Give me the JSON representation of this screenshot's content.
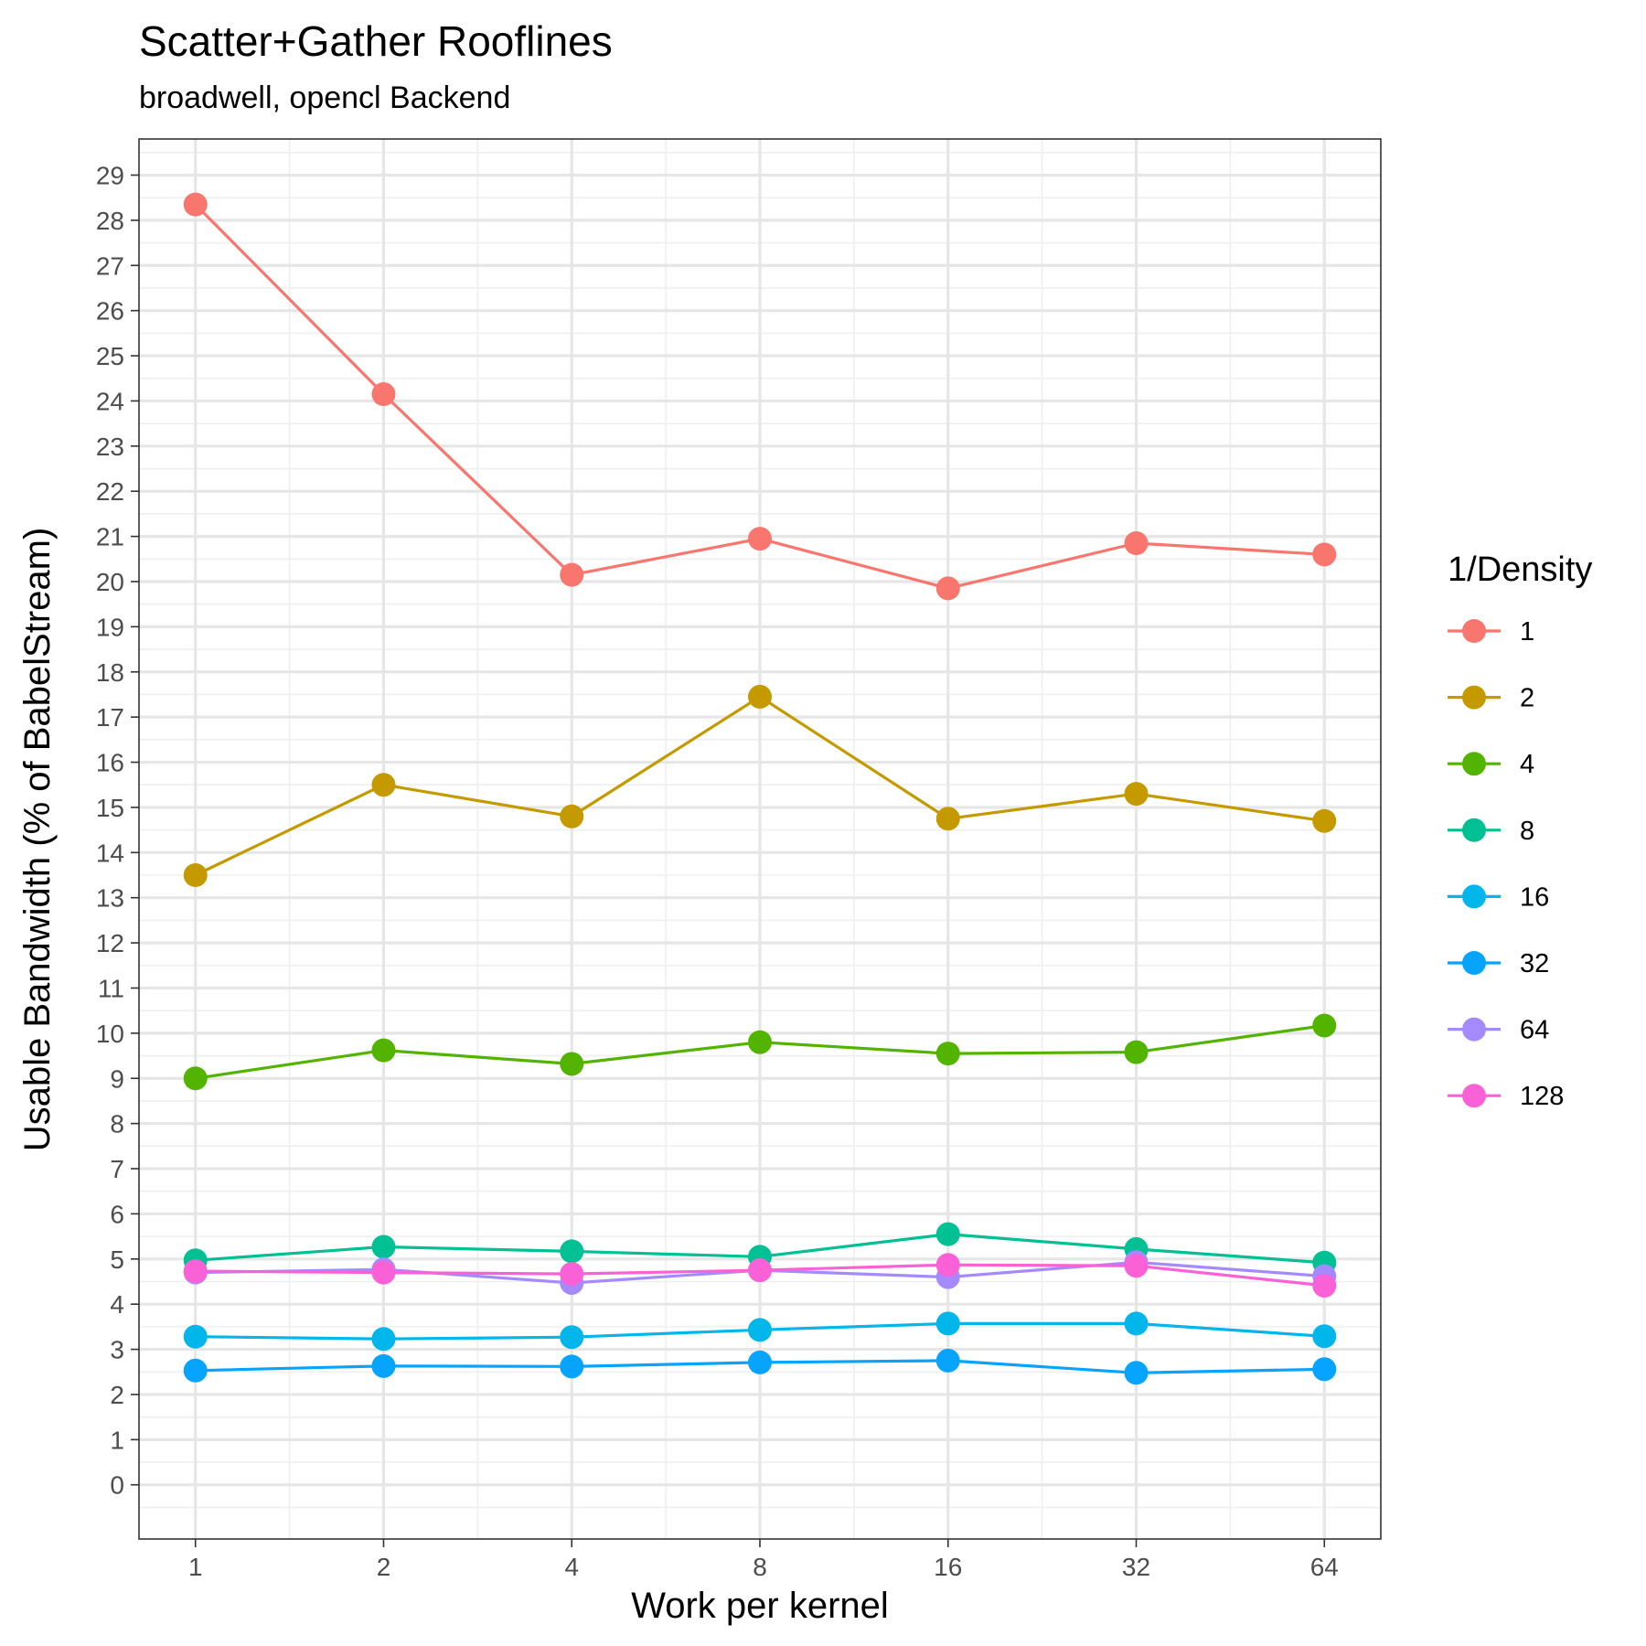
{
  "chart_data": {
    "type": "line",
    "title": "Scatter+Gather Rooflines",
    "subtitle": "broadwell, opencl Backend",
    "xlabel": "Work per kernel",
    "ylabel": "Usable Bandwidth (% of BabelStream)",
    "x_scale": "log2",
    "x": [
      1,
      2,
      4,
      8,
      16,
      32,
      64
    ],
    "x_tick_labels": [
      "1",
      "2",
      "4",
      "8",
      "16",
      "32",
      "64"
    ],
    "y_ticks": [
      0,
      1,
      2,
      3,
      4,
      5,
      6,
      7,
      8,
      9,
      10,
      11,
      12,
      13,
      14,
      15,
      16,
      17,
      18,
      19,
      20,
      21,
      22,
      23,
      24,
      25,
      26,
      27,
      28,
      29
    ],
    "ylim": [
      -1.2,
      29.8
    ],
    "grid": true,
    "legend": {
      "title": "1/Density",
      "position": "right"
    },
    "series": [
      {
        "name": "1",
        "color": "#F8766D",
        "values": [
          28.35,
          24.15,
          20.15,
          20.95,
          19.85,
          20.85,
          20.6
        ]
      },
      {
        "name": "2",
        "color": "#C49A00",
        "values": [
          13.5,
          15.5,
          14.8,
          17.45,
          14.75,
          15.3,
          14.7
        ]
      },
      {
        "name": "4",
        "color": "#53B400",
        "values": [
          9.0,
          9.62,
          9.32,
          9.8,
          9.55,
          9.58,
          10.17
        ]
      },
      {
        "name": "8",
        "color": "#00C094",
        "values": [
          4.97,
          5.27,
          5.17,
          5.05,
          5.55,
          5.22,
          4.92
        ]
      },
      {
        "name": "16",
        "color": "#00B6EB",
        "values": [
          3.28,
          3.23,
          3.27,
          3.43,
          3.57,
          3.57,
          3.29
        ]
      },
      {
        "name": "32",
        "color": "#06A4FF",
        "values": [
          2.53,
          2.63,
          2.62,
          2.71,
          2.75,
          2.48,
          2.56
        ]
      },
      {
        "name": "64",
        "color": "#A58AFF",
        "values": [
          4.7,
          4.77,
          4.47,
          4.75,
          4.6,
          4.93,
          4.62
        ]
      },
      {
        "name": "128",
        "color": "#FB61D7",
        "values": [
          4.73,
          4.7,
          4.67,
          4.75,
          4.87,
          4.85,
          4.41
        ]
      }
    ]
  }
}
